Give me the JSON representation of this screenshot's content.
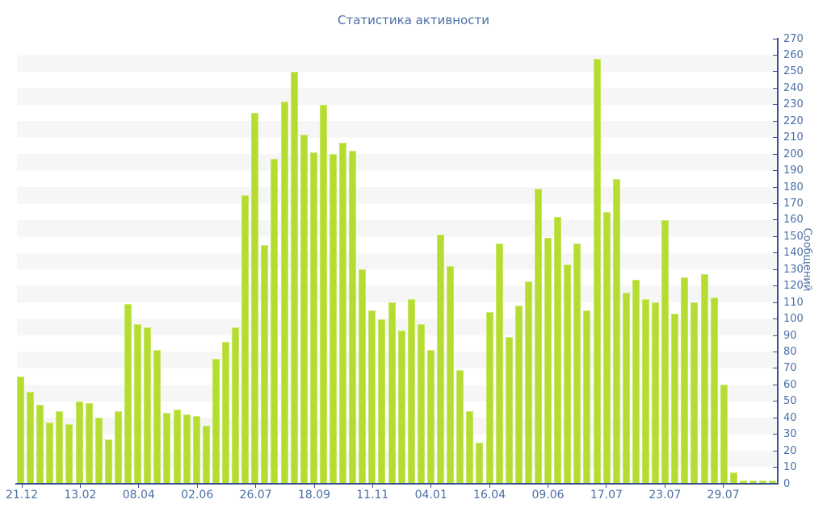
{
  "window": {
    "background": "#ffffff"
  },
  "chart_data": {
    "type": "bar",
    "title": "Статистика активности",
    "xlabel": "",
    "ylabel": "Сообщений",
    "ylim": [
      0,
      270
    ],
    "y_tick_step": 10,
    "y_axis_side": "right",
    "legend": "none",
    "grid": "horizontal-stripes-10-units",
    "x_tick_labels": [
      "21.12",
      "13.02",
      "08.04",
      "02.06",
      "26.07",
      "18.09",
      "11.11",
      "04.01",
      "16.04",
      "09.06",
      "17.07",
      "23.07",
      "29.07"
    ],
    "x_label_every_n_bars": 6,
    "values": [
      65,
      56,
      48,
      37,
      44,
      36,
      50,
      49,
      40,
      27,
      44,
      109,
      97,
      95,
      81,
      43,
      45,
      42,
      41,
      35,
      76,
      86,
      95,
      175,
      225,
      145,
      197,
      232,
      250,
      212,
      201,
      230,
      200,
      207,
      202,
      130,
      105,
      100,
      110,
      93,
      112,
      97,
      81,
      151,
      132,
      69,
      44,
      25,
      104,
      146,
      89,
      108,
      123,
      179,
      149,
      162,
      133,
      146,
      105,
      258,
      165,
      185,
      116,
      124,
      112,
      110,
      160,
      103,
      125,
      110,
      127,
      113,
      60,
      7,
      2,
      2,
      2,
      2
    ],
    "colors": {
      "bar_fill": "#b5dd31",
      "bar_edge_top": "#d2eb7d",
      "bar_edge_side": "#c7e665",
      "axis_line": "#36518e",
      "tick_label": "#4a6fa5",
      "title": "#4a6fa5",
      "stripe": "#f6f6f6",
      "background": "#ffffff"
    }
  }
}
